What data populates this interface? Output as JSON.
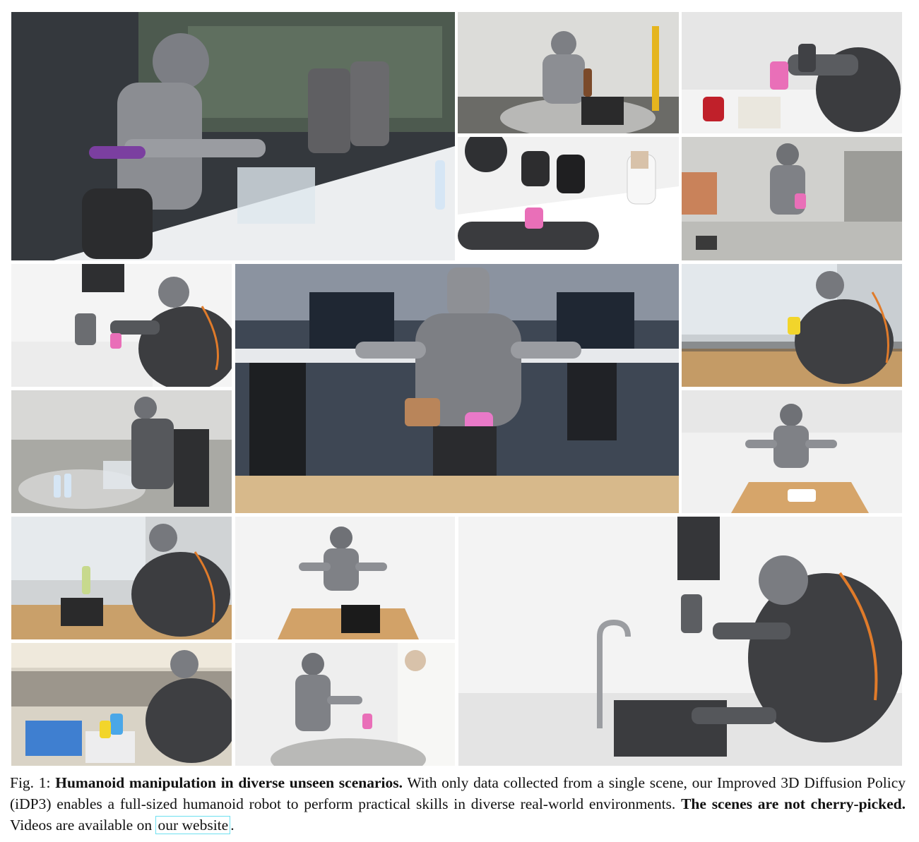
{
  "figure": {
    "label": "Fig. 1:",
    "bold_title": "Humanoid manipulation in diverse unseen scenarios.",
    "text_1": "With only data collected from a single scene, our Improved 3D Diffusion Policy (iDP3) enables a full-sized humanoid robot to perform practical skills in diverse real-world environments.",
    "bold_note": "The scenes are not cherry-picked.",
    "text_2": "Videos are available on",
    "link_text": "our website",
    "end_punct": "."
  },
  "photos": [
    {
      "id": "office-table-bottle",
      "bg": "#3b3f44",
      "floor": "#e9eaec",
      "accent": "#7b3fa0"
    },
    {
      "id": "basket-round-table",
      "bg": "#d9d9d6",
      "floor": "#6a6a66",
      "accent": "#e5b51e"
    },
    {
      "id": "kitchen-pink-cup",
      "bg": "#e4e4e4",
      "floor": "#f2f2f2",
      "accent": "#e96fb8"
    },
    {
      "id": "meeting-people",
      "bg": "#f1f1f1",
      "floor": "#ffffff",
      "accent": "#e96fb8"
    },
    {
      "id": "open-office-counter",
      "bg": "#cfcfcc",
      "floor": "#bdbdb9",
      "accent": "#e96fb8"
    },
    {
      "id": "kettle-counter",
      "bg": "#f4f4f4",
      "floor": "#e9e9e9",
      "accent": "#e96fb8"
    },
    {
      "id": "computer-desk-center",
      "bg": "#3c4552",
      "floor": "#d7b98b",
      "accent": "#e979c8"
    },
    {
      "id": "window-yellow-cup",
      "bg": "#c9ced2",
      "floor": "#c49b66",
      "accent": "#f2d52b"
    },
    {
      "id": "round-table-bottles",
      "bg": "#a9a9a4",
      "floor": "#8b8b85",
      "accent": "#3b7fd0"
    },
    {
      "id": "wood-table-towel",
      "bg": "#f1f1f1",
      "floor": "#d6a56a",
      "accent": "#ffffff"
    },
    {
      "id": "window-basket",
      "bg": "#d0d3d5",
      "floor": "#c9a06a",
      "accent": "#e07b2a"
    },
    {
      "id": "wood-table-basket",
      "bg": "#f3f3f3",
      "floor": "#d2a268",
      "accent": "#1b1b1b"
    },
    {
      "id": "granite-blue-cup",
      "bg": "#d9d3c6",
      "floor": "#9c968c",
      "accent": "#4aa7e8"
    },
    {
      "id": "handover-pink-cup",
      "bg": "#eeeeee",
      "floor": "#b9b9b7",
      "accent": "#e96fb8"
    },
    {
      "id": "kitchen-sink",
      "bg": "#f3f3f3",
      "floor": "#e6e6e6",
      "accent": "#e07b2a"
    }
  ]
}
